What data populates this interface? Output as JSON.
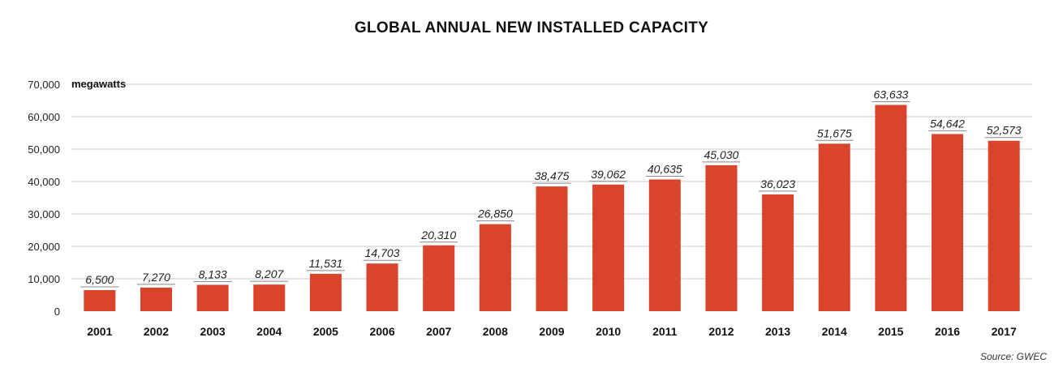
{
  "chart_data": {
    "type": "bar",
    "title": "GLOBAL ANNUAL NEW INSTALLED CAPACITY",
    "ylabel": "megawatts",
    "xlabel": "",
    "source": "Source: GWEC",
    "categories": [
      "2001",
      "2002",
      "2003",
      "2004",
      "2005",
      "2006",
      "2007",
      "2008",
      "2009",
      "2010",
      "2011",
      "2012",
      "2013",
      "2014",
      "2015",
      "2016",
      "2017"
    ],
    "values": [
      6500,
      7270,
      8133,
      8207,
      11531,
      14703,
      20310,
      26850,
      38475,
      39062,
      40635,
      45030,
      36023,
      51675,
      63633,
      54642,
      52573
    ],
    "value_labels": [
      "6,500",
      "7,270",
      "8,133",
      "8,207",
      "11,531",
      "14,703",
      "20,310",
      "26,850",
      "38,475",
      "39,062",
      "40,635",
      "45,030",
      "36,023",
      "51,675",
      "63,633",
      "54,642",
      "52,573"
    ],
    "ylim": [
      0,
      70000
    ],
    "yticks": [
      0,
      10000,
      20000,
      30000,
      40000,
      50000,
      60000,
      70000
    ],
    "ytick_labels": [
      "0",
      "10,000",
      "20,000",
      "30,000",
      "40,000",
      "50,000",
      "60,000",
      "70,000"
    ],
    "grid": true,
    "legend": "none",
    "colors": {
      "bar": "#d9452b",
      "grid": "#c8c8c8",
      "label_line": "#888888"
    }
  }
}
